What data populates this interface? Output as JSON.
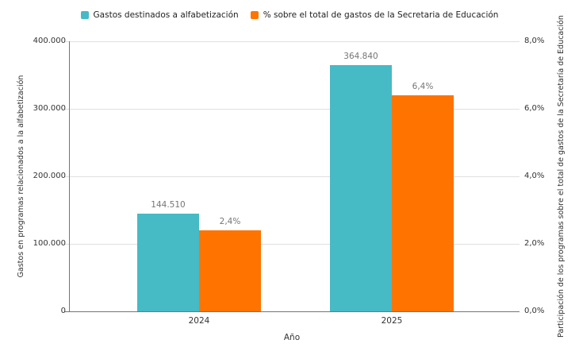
{
  "chart_data": {
    "type": "bar",
    "categories": [
      "2024",
      "2025"
    ],
    "series": [
      {
        "name": "Gastos destinados a alfabetización",
        "axis": "left",
        "color": "#46BAC5",
        "values": [
          144510,
          364840
        ],
        "value_labels": [
          "144.510",
          "364.840"
        ]
      },
      {
        "name": "% sobre el total de gastos de la Secretaria de Educación",
        "axis": "right",
        "color": "#FF7300",
        "values": [
          2.4,
          6.4
        ],
        "value_labels": [
          "2,4%",
          "6,4%"
        ]
      }
    ],
    "x_axis": {
      "title": "Año",
      "tick_labels": [
        "2024",
        "2025"
      ]
    },
    "y_axis_left": {
      "title": "Gastos en programas relacionados a la alfabetización",
      "min": 0,
      "max": 400000,
      "tick_labels": [
        "0",
        "100.000",
        "200.000",
        "300.000",
        "400.000"
      ]
    },
    "y_axis_right": {
      "title": "Participación de los programas sobre el total de gastos de la Secretaría de Educación",
      "min": 0,
      "max": 8,
      "tick_labels": [
        "0,0%",
        "2,0%",
        "4,0%",
        "6,0%",
        "8,0%"
      ]
    },
    "grid": true,
    "legend_position": "top",
    "colors": {
      "background": "#FFFFFF",
      "grid": "#E0E0E0",
      "axis_line": "#757575",
      "tick_label": "#333333",
      "data_label": "#757575"
    }
  }
}
